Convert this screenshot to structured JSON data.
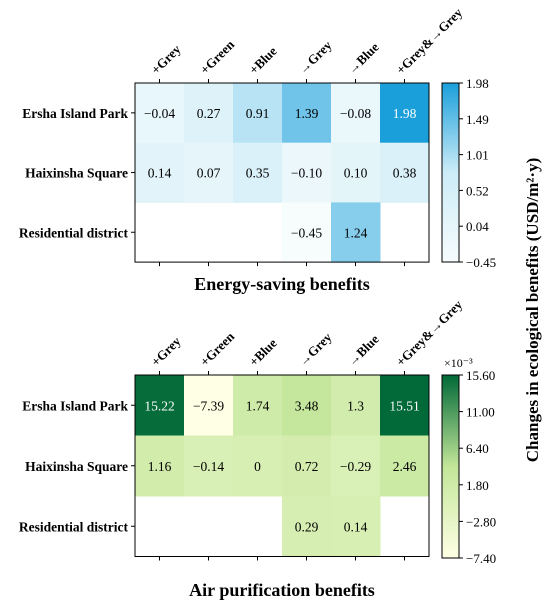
{
  "ylabel": "Changes in ecological benefits (USD/m²·y)",
  "chart_data": [
    {
      "type": "heatmap",
      "title": "Energy-saving benefits",
      "columns": [
        "+Grey",
        "+Green",
        "+Blue",
        "→Grey",
        "→Blue",
        "+Grey&→Grey"
      ],
      "rows": [
        "Ersha Island Park",
        "Haixinsha Square",
        "Residential district"
      ],
      "values": [
        [
          -0.04,
          0.27,
          0.91,
          1.39,
          -0.08,
          1.98
        ],
        [
          0.14,
          0.07,
          0.35,
          -0.1,
          0.1,
          0.38
        ],
        [
          null,
          null,
          null,
          -0.45,
          1.24,
          null
        ]
      ],
      "labels": [
        [
          "−0.04",
          "0.27",
          "0.91",
          "1.39",
          "−0.08",
          "1.98"
        ],
        [
          "0.14",
          "0.07",
          "0.35",
          "−0.10",
          "0.10",
          "0.38"
        ],
        [
          "",
          "",
          "",
          "−0.45",
          "1.24",
          ""
        ]
      ],
      "colorbar": {
        "min": -0.45,
        "max": 1.98,
        "ticks": [
          "1.98",
          "1.49",
          "1.01",
          "0.52",
          "0.04",
          "−0.45"
        ],
        "multiplier": "",
        "colors": [
          "#f7fcfd",
          "#ccecf7",
          "#1a9fdb"
        ]
      }
    },
    {
      "type": "heatmap",
      "title": "Air purification benefits",
      "columns": [
        "+Grey",
        "+Green",
        "+Blue",
        "→Grey",
        "→Blue",
        "+Grey&→Grey"
      ],
      "rows": [
        "Ersha Island Park",
        "Haixinsha Square",
        "Residential district"
      ],
      "values": [
        [
          15.22,
          -7.39,
          1.74,
          3.48,
          1.3,
          15.51
        ],
        [
          1.16,
          -0.14,
          0,
          0.72,
          -0.29,
          2.46
        ],
        [
          null,
          null,
          null,
          0.29,
          0.14,
          null
        ]
      ],
      "labels": [
        [
          "15.22",
          "−7.39",
          "1.74",
          "3.48",
          "1.3",
          "15.51"
        ],
        [
          "1.16",
          "−0.14",
          "0",
          "0.72",
          "−0.29",
          "2.46"
        ],
        [
          "",
          "",
          "",
          "0.29",
          "0.14",
          ""
        ]
      ],
      "colorbar": {
        "min": -7.4,
        "max": 15.6,
        "ticks": [
          "15.60",
          "11.00",
          "6.40",
          "1.80",
          "−2.80",
          "−7.40"
        ],
        "multiplier": "×10⁻³",
        "colors": [
          "#ffffe5",
          "#c2e699",
          "#006837"
        ]
      }
    }
  ]
}
